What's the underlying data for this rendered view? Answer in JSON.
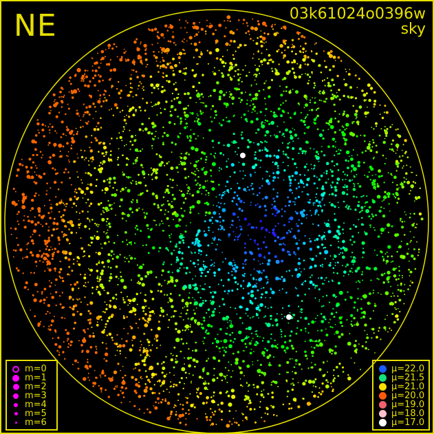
{
  "chart_data": {
    "type": "scatter",
    "title": "NE",
    "frame_id": "03k61024o0396w",
    "subtitle": "sky",
    "projection": "all-sky circular field of view",
    "colors": {
      "frame": "#e6e000",
      "background": "#000000"
    },
    "size_legend": {
      "marker_color": "#ff00ff",
      "entries": [
        {
          "label": "m=0",
          "open": true
        },
        {
          "label": "m=1"
        },
        {
          "label": "m=2"
        },
        {
          "label": "m=3"
        },
        {
          "label": "m=4"
        },
        {
          "label": "m=5"
        },
        {
          "label": "m=6"
        }
      ]
    },
    "color_legend": {
      "entries": [
        {
          "label": "μ=22.0",
          "color": "#1a5cff"
        },
        {
          "label": "μ=21.5",
          "color": "#16e07a"
        },
        {
          "label": "μ=21.0",
          "color": "#ffe000"
        },
        {
          "label": "μ=20.0",
          "color": "#ff5a10"
        },
        {
          "label": "μ=19.0",
          "color": "#f06070"
        },
        {
          "label": "μ=18.0",
          "color": "#ffc0cc"
        },
        {
          "label": "μ=17.0",
          "color": "#ffffff"
        }
      ]
    }
  }
}
